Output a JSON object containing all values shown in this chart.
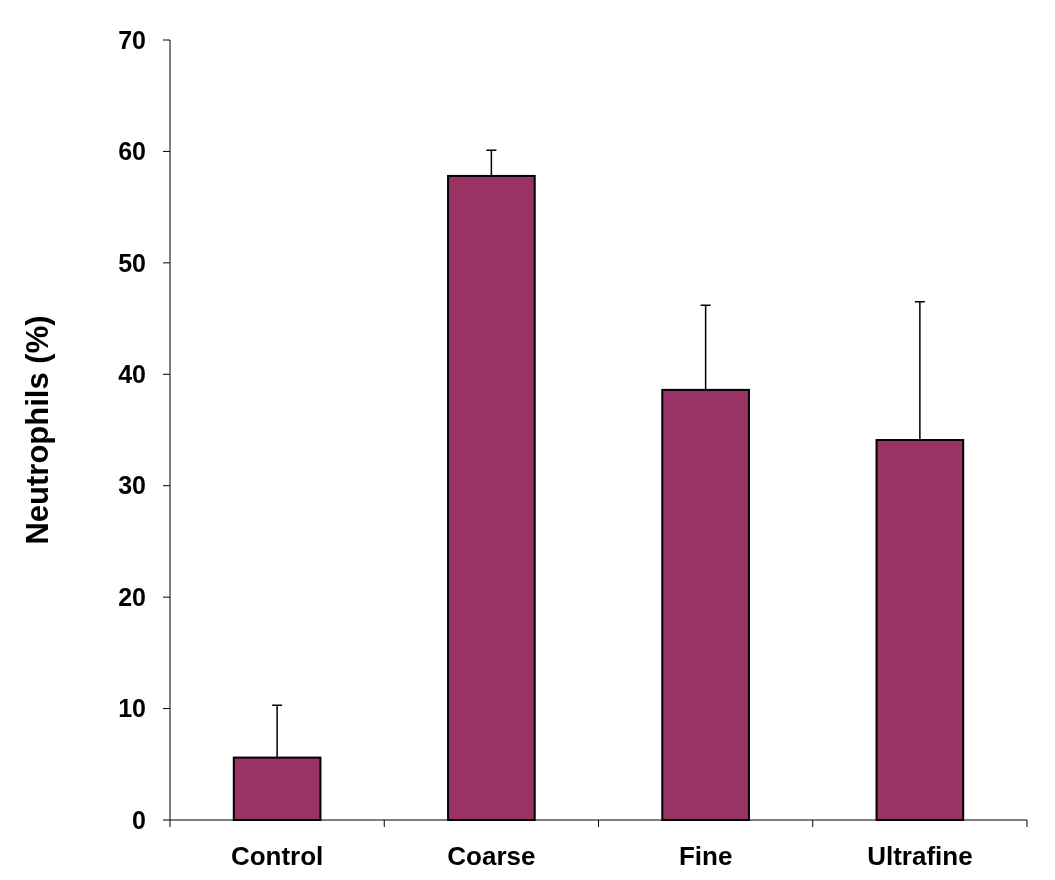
{
  "chart_data": {
    "type": "bar",
    "ylabel": "Neutrophils (%)",
    "categories": [
      "Control",
      "Coarse",
      "Fine",
      "Ultrafine"
    ],
    "values": [
      5.6,
      57.8,
      38.6,
      34.1
    ],
    "color": "#993366",
    "errors": [
      [
        5.6,
        10.3
      ],
      [
        57.8,
        60.1
      ],
      [
        38.6,
        46.2
      ],
      [
        34.1,
        46.5
      ]
    ],
    "ylim": [
      0,
      70
    ],
    "yticks": [
      0,
      10,
      20,
      30,
      40,
      50,
      60,
      70
    ],
    "grid": false
  }
}
